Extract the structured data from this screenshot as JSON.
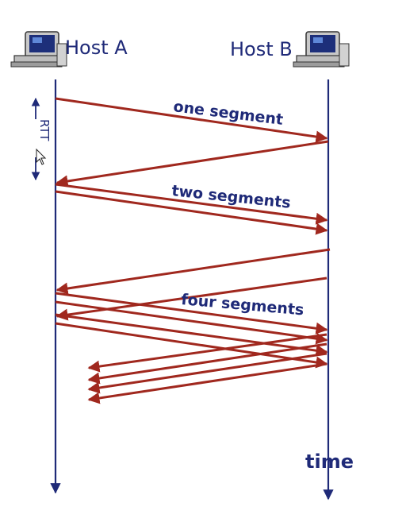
{
  "hosts": {
    "a_label": "Host A",
    "b_label": "Host B"
  },
  "labels": {
    "one_segment": "one segment",
    "two_segments": "two segments",
    "four_segments": "four segments",
    "time": "time",
    "rtt": "RTT"
  },
  "colors": {
    "arrow": "#a0281e",
    "timeline": "#1f2a78",
    "text": "#1f2a78"
  },
  "icons": {
    "host_a": "computer-icon",
    "host_b": "computer-icon",
    "cursor": "mouse-pointer-icon"
  }
}
